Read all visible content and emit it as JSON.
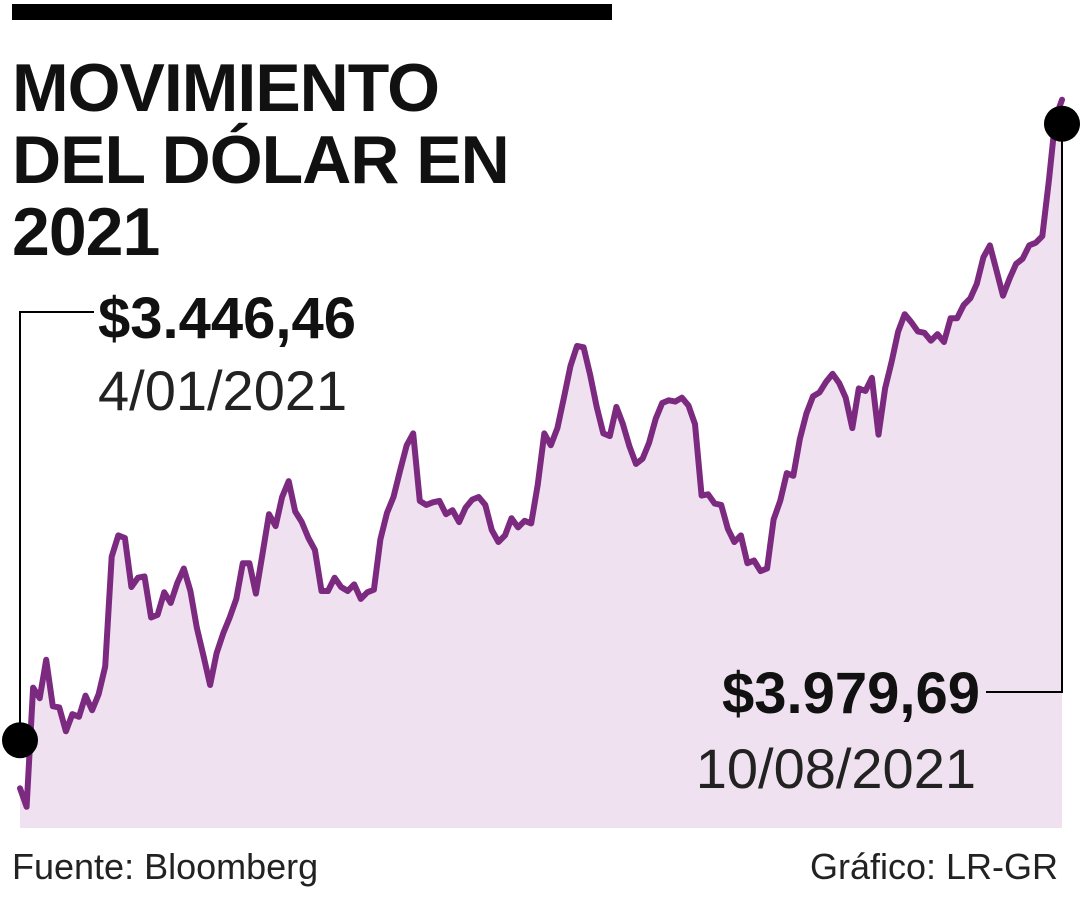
{
  "title": {
    "line1": "MOVIMIENTO",
    "line2": "DEL DÓLAR EN 2021"
  },
  "annotations": {
    "start": {
      "value": "$3.446,46",
      "date": "4/01/2021"
    },
    "end": {
      "value": "$3.979,69",
      "date": "10/08/2021"
    }
  },
  "footer": {
    "source": "Fuente: Bloomberg",
    "credit": "Gráfico: LR-GR"
  },
  "colors": {
    "line": "#7b2a80",
    "area": "#efe1ef",
    "marker": "#000000"
  },
  "chart_data": {
    "type": "area",
    "title": "MOVIMIENTO DEL DÓLAR EN 2021",
    "xlabel": "",
    "ylabel": "",
    "grid": false,
    "x_range": [
      "4/01/2021",
      "10/08/2021"
    ],
    "ylim": [
      3430,
      4010
    ],
    "series": [
      {
        "values": [
          3460,
          3446,
          3536,
          3528,
          3557,
          3522,
          3521,
          3503,
          3516,
          3514,
          3530,
          3519,
          3531,
          3552,
          3635,
          3651,
          3649,
          3612,
          3619,
          3620,
          3589,
          3591,
          3608,
          3600,
          3615,
          3626,
          3609,
          3581,
          3560,
          3538,
          3562,
          3577,
          3589,
          3603,
          3630,
          3630,
          3607,
          3637,
          3667,
          3658,
          3680,
          3692,
          3669,
          3661,
          3649,
          3640,
          3609,
          3609,
          3619,
          3612,
          3609,
          3614,
          3603,
          3608,
          3610,
          3648,
          3668,
          3680,
          3700,
          3719,
          3728,
          3677,
          3674,
          3676,
          3677,
          3667,
          3670,
          3661,
          3672,
          3678,
          3680,
          3674,
          3655,
          3646,
          3651,
          3664,
          3657,
          3662,
          3660,
          3689,
          3728,
          3719,
          3732,
          3755,
          3779,
          3794,
          3793,
          3772,
          3748,
          3728,
          3726,
          3748,
          3735,
          3718,
          3705,
          3709,
          3721,
          3739,
          3751,
          3753,
          3752,
          3755,
          3749,
          3735,
          3681,
          3682,
          3675,
          3674,
          3656,
          3646,
          3651,
          3630,
          3632,
          3624,
          3626,
          3663,
          3677,
          3698,
          3696,
          3724,
          3743,
          3756,
          3759,
          3767,
          3773,
          3766,
          3755,
          3732,
          3762,
          3760,
          3770,
          3727,
          3762,
          3782,
          3805,
          3818,
          3812,
          3805,
          3804,
          3798,
          3803,
          3797,
          3815,
          3815,
          3825,
          3830,
          3841,
          3861,
          3870,
          3851,
          3832,
          3845,
          3856,
          3860,
          3870,
          3872,
          3877,
          3919,
          3966,
          3980
        ],
        "start_label": "$3.446,46",
        "end_label": "$3.979,69"
      }
    ]
  }
}
